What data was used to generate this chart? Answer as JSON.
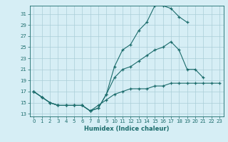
{
  "title": "",
  "xlabel": "Humidex (Indice chaleur)",
  "background_color": "#d6eef5",
  "grid_color": "#aacdd8",
  "line_color": "#1a6b6b",
  "xlim": [
    -0.5,
    23.5
  ],
  "ylim": [
    12.5,
    32.5
  ],
  "yticks": [
    13,
    15,
    17,
    19,
    21,
    23,
    25,
    27,
    29,
    31
  ],
  "xticks": [
    0,
    1,
    2,
    3,
    4,
    5,
    6,
    7,
    8,
    9,
    10,
    11,
    12,
    13,
    14,
    15,
    16,
    17,
    18,
    19,
    20,
    21,
    22,
    23
  ],
  "line1_x": [
    0,
    1,
    2,
    3,
    4,
    5,
    6,
    7,
    8,
    9,
    10,
    11,
    12,
    13,
    14,
    15,
    16,
    17,
    18,
    19
  ],
  "line1_y": [
    17.0,
    16.0,
    15.0,
    14.5,
    14.5,
    14.5,
    14.5,
    13.5,
    14.0,
    16.5,
    21.5,
    24.5,
    25.5,
    28.0,
    29.5,
    32.5,
    32.5,
    32.0,
    30.5,
    29.5
  ],
  "line2_x": [
    0,
    1,
    2,
    3,
    4,
    5,
    6,
    7,
    8,
    9,
    10,
    11,
    12,
    13,
    14,
    15,
    16,
    17,
    18,
    19,
    20,
    21
  ],
  "line2_y": [
    17.0,
    16.0,
    15.0,
    14.5,
    14.5,
    14.5,
    14.5,
    13.5,
    14.0,
    16.5,
    19.5,
    21.0,
    21.5,
    22.5,
    23.5,
    24.5,
    25.0,
    26.0,
    24.5,
    21.0,
    21.0,
    19.5
  ],
  "line3_x": [
    0,
    1,
    2,
    3,
    4,
    5,
    6,
    7,
    8,
    9,
    10,
    11,
    12,
    13,
    14,
    15,
    16,
    17,
    18,
    19,
    20,
    21,
    22,
    23
  ],
  "line3_y": [
    17.0,
    16.0,
    15.0,
    14.5,
    14.5,
    14.5,
    14.5,
    13.5,
    14.5,
    15.5,
    16.5,
    17.0,
    17.5,
    17.5,
    17.5,
    18.0,
    18.0,
    18.5,
    18.5,
    18.5,
    18.5,
    18.5,
    18.5,
    18.5
  ]
}
